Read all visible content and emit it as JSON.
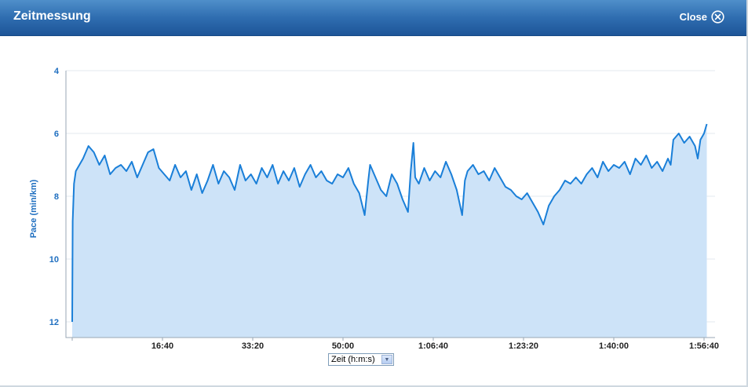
{
  "dialog": {
    "title": "Zeitmessung",
    "close_label": "Close"
  },
  "x_unit_select": {
    "selected": "Zeit (h:m:s)"
  },
  "colors": {
    "line": "#1a7fd8",
    "fill": "#cde3f8",
    "axis_label": "#1f6fc0"
  },
  "chart_data": {
    "type": "area",
    "title": "",
    "xlabel": "",
    "ylabel": "Pace (min/km)",
    "y_inverted": true,
    "ylim": [
      4,
      12.5
    ],
    "xlim": [
      "0:00",
      "1:57:30"
    ],
    "y_ticks": [
      "4",
      "6",
      "8",
      "10",
      "12"
    ],
    "x_ticks": [
      "16:40",
      "33:20",
      "50:00",
      "1:06:40",
      "1:23:20",
      "1:40:00",
      "1:56:40"
    ],
    "grid": true,
    "legend": "none",
    "series": [
      {
        "x": [
          "0:00",
          "0:05",
          "0:20",
          "0:40",
          "1:00",
          "2:00",
          "3:00",
          "4:00",
          "5:00",
          "6:00",
          "7:00",
          "8:00",
          "9:00",
          "10:00",
          "11:00",
          "12:00",
          "13:00",
          "14:00",
          "15:00",
          "16:00",
          "17:00",
          "18:00",
          "19:00",
          "20:00",
          "21:00",
          "22:00",
          "23:00",
          "24:00",
          "25:00",
          "26:00",
          "27:00",
          "28:00",
          "29:00",
          "30:00",
          "31:00",
          "32:00",
          "33:00",
          "34:00",
          "35:00",
          "36:00",
          "37:00",
          "38:00",
          "39:00",
          "40:00",
          "41:00",
          "42:00",
          "43:00",
          "44:00",
          "45:00",
          "46:00",
          "47:00",
          "48:00",
          "49:00",
          "50:00",
          "51:00",
          "52:00",
          "53:00",
          "54:00",
          "54:40",
          "55:00",
          "56:00",
          "57:00",
          "58:00",
          "59:00",
          "1:00:00",
          "1:01:00",
          "1:02:00",
          "1:02:30",
          "1:03:00",
          "1:03:20",
          "1:04:00",
          "1:05:00",
          "1:06:00",
          "1:07:00",
          "1:08:00",
          "1:09:00",
          "1:10:00",
          "1:11:00",
          "1:12:00",
          "1:12:30",
          "1:13:00",
          "1:14:00",
          "1:15:00",
          "1:16:00",
          "1:17:00",
          "1:18:00",
          "1:19:00",
          "1:20:00",
          "1:21:00",
          "1:22:00",
          "1:23:00",
          "1:24:00",
          "1:25:00",
          "1:26:00",
          "1:27:00",
          "1:28:00",
          "1:29:00",
          "1:30:00",
          "1:31:00",
          "1:32:00",
          "1:33:00",
          "1:34:00",
          "1:35:00",
          "1:36:00",
          "1:37:00",
          "1:38:00",
          "1:39:00",
          "1:40:00",
          "1:41:00",
          "1:42:00",
          "1:43:00",
          "1:44:00",
          "1:45:00",
          "1:46:00",
          "1:47:00",
          "1:48:00",
          "1:49:00",
          "1:50:00",
          "1:50:30",
          "1:51:00",
          "1:52:00",
          "1:53:00",
          "1:54:00",
          "1:55:00",
          "1:55:30",
          "1:56:00",
          "1:56:40",
          "1:57:10"
        ],
        "values": [
          12.0,
          8.8,
          7.6,
          7.2,
          7.1,
          6.8,
          6.4,
          6.6,
          7.0,
          6.7,
          7.3,
          7.1,
          7.0,
          7.2,
          6.9,
          7.4,
          7.0,
          6.6,
          6.5,
          7.1,
          7.3,
          7.5,
          7.0,
          7.4,
          7.2,
          7.8,
          7.3,
          7.9,
          7.5,
          7.0,
          7.6,
          7.2,
          7.4,
          7.8,
          7.0,
          7.5,
          7.3,
          7.6,
          7.1,
          7.4,
          7.0,
          7.6,
          7.2,
          7.5,
          7.1,
          7.7,
          7.3,
          7.0,
          7.4,
          7.2,
          7.5,
          7.6,
          7.3,
          7.4,
          7.1,
          7.6,
          7.9,
          8.6,
          7.5,
          7.0,
          7.4,
          7.8,
          8.0,
          7.3,
          7.6,
          8.1,
          8.5,
          7.2,
          6.3,
          7.4,
          7.6,
          7.1,
          7.5,
          7.2,
          7.4,
          6.9,
          7.3,
          7.8,
          8.6,
          7.5,
          7.2,
          7.0,
          7.3,
          7.2,
          7.5,
          7.1,
          7.4,
          7.7,
          7.8,
          8.0,
          8.1,
          7.9,
          8.2,
          8.5,
          8.9,
          8.3,
          8.0,
          7.8,
          7.5,
          7.6,
          7.4,
          7.6,
          7.3,
          7.1,
          7.4,
          6.9,
          7.2,
          7.0,
          7.1,
          6.9,
          7.3,
          6.8,
          7.0,
          6.7,
          7.1,
          6.9,
          7.2,
          6.8,
          7.0,
          6.2,
          6.0,
          6.3,
          6.1,
          6.4,
          6.8,
          6.2,
          6.0,
          5.7
        ]
      }
    ]
  }
}
